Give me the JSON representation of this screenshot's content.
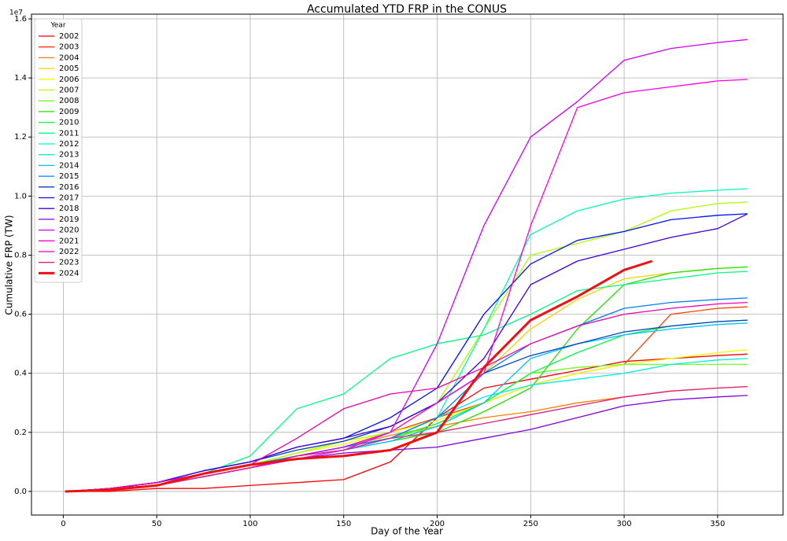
{
  "chart_data": {
    "type": "line",
    "title": "Accumulated YTD FRP in the CONUS",
    "xlabel": "Day of the Year",
    "ylabel": "Cumulative FRP (TW)",
    "y_offset_label": "1e7",
    "legend_title": "Year",
    "legend": "upper left",
    "grid": true,
    "xlim": [
      -17,
      385
    ],
    "ylim": [
      -0.08,
      1.616
    ],
    "xticks": [
      0,
      50,
      100,
      150,
      200,
      250,
      300,
      350
    ],
    "yticks": [
      {
        "value": 0,
        "label": "0.0"
      },
      0.2,
      0.4,
      0.6,
      0.8,
      {
        "value": 1,
        "label": "1.0"
      },
      1.2,
      1.4,
      1.6
    ],
    "x": [
      1,
      25,
      50,
      75,
      100,
      125,
      150,
      175,
      200,
      225,
      250,
      275,
      300,
      325,
      350,
      366
    ],
    "series": [
      {
        "name": "2002",
        "color": "#ff0000",
        "values": [
          0,
          0,
          0.01,
          0.01,
          0.02,
          0.03,
          0.04,
          0.1,
          0.25,
          0.35,
          0.38,
          0.41,
          0.44,
          0.45,
          0.46,
          0.465
        ]
      },
      {
        "name": "2003",
        "color": "#ff4000",
        "values": [
          0,
          0.01,
          0.03,
          0.06,
          0.09,
          0.12,
          0.15,
          0.2,
          0.25,
          0.3,
          0.36,
          0.4,
          0.43,
          0.6,
          0.62,
          0.625
        ]
      },
      {
        "name": "2004",
        "color": "#ff8000",
        "values": [
          0,
          0.01,
          0.03,
          0.06,
          0.09,
          0.12,
          0.15,
          0.19,
          0.22,
          0.25,
          0.27,
          0.3,
          0.32,
          0.34,
          0.35,
          0.355
        ]
      },
      {
        "name": "2005",
        "color": "#ffd000",
        "values": [
          0,
          0.01,
          0.03,
          0.06,
          0.09,
          0.13,
          0.17,
          0.22,
          0.3,
          0.4,
          0.55,
          0.65,
          0.72,
          0.74,
          0.755,
          0.76
        ]
      },
      {
        "name": "2006",
        "color": "#f0ff00",
        "values": [
          0,
          0.01,
          0.03,
          0.06,
          0.09,
          0.13,
          0.16,
          0.2,
          0.24,
          0.3,
          0.36,
          0.4,
          0.43,
          0.45,
          0.47,
          0.48
        ]
      },
      {
        "name": "2007",
        "color": "#b0ff00",
        "values": [
          0,
          0.01,
          0.03,
          0.06,
          0.09,
          0.13,
          0.17,
          0.2,
          0.3,
          0.55,
          0.8,
          0.84,
          0.88,
          0.95,
          0.975,
          0.98
        ]
      },
      {
        "name": "2008",
        "color": "#70ff20",
        "values": [
          0,
          0.01,
          0.03,
          0.06,
          0.09,
          0.12,
          0.15,
          0.18,
          0.22,
          0.3,
          0.4,
          0.42,
          0.43,
          0.43,
          0.43,
          0.43
        ]
      },
      {
        "name": "2009",
        "color": "#20e000",
        "values": [
          0,
          0.01,
          0.02,
          0.05,
          0.08,
          0.11,
          0.14,
          0.17,
          0.2,
          0.27,
          0.35,
          0.55,
          0.7,
          0.74,
          0.755,
          0.76
        ]
      },
      {
        "name": "2010",
        "color": "#00ff40",
        "values": [
          0,
          0.01,
          0.03,
          0.06,
          0.09,
          0.12,
          0.15,
          0.18,
          0.23,
          0.3,
          0.4,
          0.47,
          0.53,
          0.56,
          0.575,
          0.58
        ]
      },
      {
        "name": "2011",
        "color": "#00ff80",
        "values": [
          0,
          0.01,
          0.03,
          0.06,
          0.12,
          0.28,
          0.33,
          0.45,
          0.5,
          0.53,
          0.6,
          0.68,
          0.7,
          0.72,
          0.74,
          0.745
        ]
      },
      {
        "name": "2012",
        "color": "#00ffb0",
        "values": [
          0,
          0.01,
          0.03,
          0.06,
          0.09,
          0.12,
          0.15,
          0.18,
          0.25,
          0.55,
          0.87,
          0.95,
          0.99,
          1.01,
          1.02,
          1.025
        ]
      },
      {
        "name": "2013",
        "color": "#00f0e0",
        "values": [
          0,
          0.01,
          0.02,
          0.05,
          0.08,
          0.11,
          0.14,
          0.18,
          0.25,
          0.32,
          0.36,
          0.38,
          0.4,
          0.43,
          0.445,
          0.45
        ]
      },
      {
        "name": "2014",
        "color": "#00c0ff",
        "values": [
          0,
          0.01,
          0.02,
          0.05,
          0.08,
          0.11,
          0.14,
          0.17,
          0.22,
          0.3,
          0.45,
          0.5,
          0.53,
          0.55,
          0.565,
          0.57
        ]
      },
      {
        "name": "2015",
        "color": "#0080ff",
        "values": [
          0,
          0.01,
          0.03,
          0.06,
          0.09,
          0.12,
          0.15,
          0.18,
          0.25,
          0.4,
          0.5,
          0.56,
          0.62,
          0.64,
          0.65,
          0.655
        ]
      },
      {
        "name": "2016",
        "color": "#0040c0",
        "values": [
          0,
          0.01,
          0.03,
          0.07,
          0.1,
          0.14,
          0.17,
          0.22,
          0.3,
          0.4,
          0.46,
          0.5,
          0.54,
          0.56,
          0.575,
          0.58
        ]
      },
      {
        "name": "2017",
        "color": "#0010ff",
        "values": [
          0,
          0.01,
          0.03,
          0.07,
          0.1,
          0.15,
          0.18,
          0.25,
          0.35,
          0.6,
          0.77,
          0.85,
          0.88,
          0.92,
          0.935,
          0.94
        ]
      },
      {
        "name": "2018",
        "color": "#4000e0",
        "values": [
          0,
          0.01,
          0.03,
          0.07,
          0.1,
          0.15,
          0.18,
          0.22,
          0.3,
          0.45,
          0.7,
          0.78,
          0.82,
          0.86,
          0.89,
          0.94
        ]
      },
      {
        "name": "2019",
        "color": "#8000e0",
        "values": [
          0,
          0.01,
          0.02,
          0.05,
          0.08,
          0.11,
          0.13,
          0.14,
          0.15,
          0.18,
          0.21,
          0.25,
          0.29,
          0.31,
          0.32,
          0.325
        ]
      },
      {
        "name": "2020",
        "color": "#d000ff",
        "values": [
          0,
          0.01,
          0.02,
          0.05,
          0.08,
          0.12,
          0.15,
          0.2,
          0.5,
          0.9,
          1.2,
          1.32,
          1.46,
          1.5,
          1.52,
          1.53
        ]
      },
      {
        "name": "2021",
        "color": "#ff00e0",
        "values": [
          0,
          0.01,
          0.02,
          0.05,
          0.08,
          0.11,
          0.14,
          0.2,
          0.3,
          0.4,
          0.9,
          1.3,
          1.35,
          1.37,
          1.39,
          1.395
        ]
      },
      {
        "name": "2022",
        "color": "#f000b0",
        "values": [
          0,
          0.01,
          0.03,
          0.06,
          0.09,
          0.18,
          0.28,
          0.33,
          0.35,
          0.42,
          0.5,
          0.56,
          0.6,
          0.62,
          0.635,
          0.64
        ]
      },
      {
        "name": "2023",
        "color": "#e02080",
        "values": [
          0,
          0.01,
          0.02,
          0.05,
          0.08,
          0.12,
          0.14,
          0.18,
          0.2,
          0.23,
          0.26,
          0.29,
          0.32,
          0.34,
          0.35,
          0.355
        ]
      },
      {
        "name": "2024",
        "color": "#ee1111",
        "linewidth": 3,
        "x": [
          1,
          25,
          50,
          75,
          100,
          125,
          150,
          175,
          200,
          225,
          250,
          275,
          300,
          315
        ],
        "values": [
          0,
          0.005,
          0.02,
          0.06,
          0.09,
          0.11,
          0.12,
          0.14,
          0.2,
          0.42,
          0.58,
          0.66,
          0.75,
          0.78
        ]
      }
    ]
  }
}
